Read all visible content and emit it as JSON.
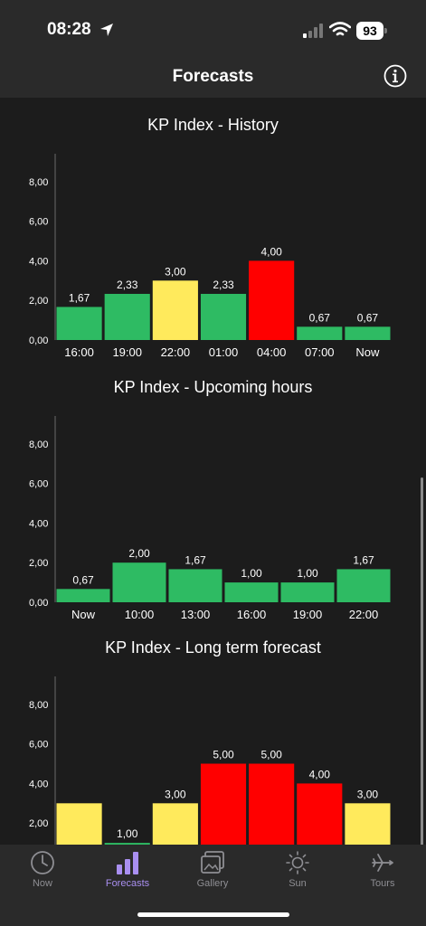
{
  "status": {
    "time": "08:28",
    "battery": "93"
  },
  "nav": {
    "title": "Forecasts"
  },
  "axis_ticks": [
    "0,00",
    "2,00",
    "4,00",
    "6,00",
    "8,00"
  ],
  "colors": {
    "green": "#2ebb63",
    "yellow": "#ffea5c",
    "red": "#ff0000",
    "accent": "#a98ff0"
  },
  "chart_data": [
    {
      "type": "bar",
      "title": "KP Index - History",
      "categories": [
        "16:00",
        "19:00",
        "22:00",
        "01:00",
        "04:00",
        "07:00",
        "Now"
      ],
      "values": [
        1.67,
        2.33,
        3.0,
        2.33,
        4.0,
        0.67,
        0.67
      ],
      "value_labels": [
        "1,67",
        "2,33",
        "3,00",
        "2,33",
        "4,00",
        "0,67",
        "0,67"
      ],
      "bar_colors": [
        "green",
        "green",
        "yellow",
        "green",
        "red",
        "green",
        "green"
      ],
      "ylim": [
        0,
        9
      ]
    },
    {
      "type": "bar",
      "title": "KP Index - Upcoming hours",
      "categories": [
        "Now",
        "10:00",
        "13:00",
        "16:00",
        "19:00",
        "22:00"
      ],
      "values": [
        0.67,
        2.0,
        1.67,
        1.0,
        1.0,
        1.67
      ],
      "value_labels": [
        "0,67",
        "2,00",
        "1,67",
        "1,00",
        "1,00",
        "1,67"
      ],
      "bar_colors": [
        "green",
        "green",
        "green",
        "green",
        "green",
        "green"
      ],
      "ylim": [
        0,
        9
      ]
    },
    {
      "type": "bar",
      "title": "KP Index - Long term forecast",
      "categories": [
        "",
        "",
        "",
        "",
        "",
        "",
        ""
      ],
      "values": [
        3.0,
        1.0,
        3.0,
        5.0,
        5.0,
        4.0,
        3.0
      ],
      "value_labels": [
        "",
        "1,00",
        "3,00",
        "5,00",
        "5,00",
        "4,00",
        "3,00"
      ],
      "bar_colors": [
        "yellow",
        "green",
        "yellow",
        "red",
        "red",
        "red",
        "yellow"
      ],
      "ylim": [
        0,
        9
      ]
    }
  ],
  "tabs": [
    {
      "label": "Now",
      "icon": "clock-icon"
    },
    {
      "label": "Forecasts",
      "icon": "bar-chart-icon",
      "active": true
    },
    {
      "label": "Gallery",
      "icon": "gallery-icon"
    },
    {
      "label": "Sun",
      "icon": "sun-icon"
    },
    {
      "label": "Tours",
      "icon": "airplane-icon"
    }
  ]
}
